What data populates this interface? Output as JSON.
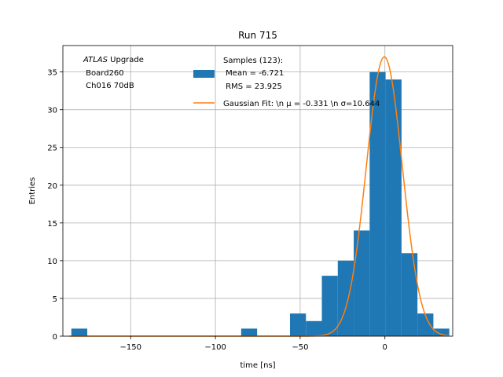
{
  "chart_data": {
    "type": "bar",
    "title": "Run 715",
    "xlabel": "time [ns]",
    "ylabel": "Entries",
    "xlim": [
      -190,
      40
    ],
    "ylim": [
      0,
      38.5
    ],
    "xticks": [
      -150,
      -100,
      -50,
      0
    ],
    "xtick_labels": [
      "−150",
      "−100",
      "−50",
      "0"
    ],
    "yticks": [
      0,
      5,
      10,
      15,
      20,
      25,
      30,
      35
    ],
    "ytick_labels": [
      "0",
      "5",
      "10",
      "15",
      "20",
      "25",
      "30",
      "35"
    ],
    "grid": true,
    "annotation": {
      "italic": "ATLAS",
      "rest": " Upgrade",
      "line2": " Board260",
      "line3": " Ch016 70dB"
    },
    "histogram": {
      "name_lines": [
        "Samples (123):",
        " Mean = -6.721",
        " RMS = 23.925"
      ],
      "color": "#1f77b4",
      "bins": [
        {
          "x0": -185.0,
          "x1": -175.6,
          "count": 1
        },
        {
          "x0": -84.8,
          "x1": -75.4,
          "count": 1
        },
        {
          "x0": -56.0,
          "x1": -46.6,
          "count": 3
        },
        {
          "x0": -46.6,
          "x1": -37.2,
          "count": 2
        },
        {
          "x0": -37.2,
          "x1": -27.8,
          "count": 8
        },
        {
          "x0": -27.8,
          "x1": -18.4,
          "count": 10
        },
        {
          "x0": -18.4,
          "x1": -9.0,
          "count": 14
        },
        {
          "x0": -9.0,
          "x1": 0.4,
          "count": 35
        },
        {
          "x0": 0.4,
          "x1": 9.8,
          "count": 34
        },
        {
          "x0": 9.8,
          "x1": 19.2,
          "count": 11
        },
        {
          "x0": 19.2,
          "x1": 28.6,
          "count": 3
        },
        {
          "x0": 28.6,
          "x1": 38.0,
          "count": 1
        }
      ]
    },
    "fit": {
      "name": "Gaussian Fit: \\n μ = -0.331 \\n σ=10.644",
      "color": "#ff7f0e",
      "amplitude": 37.0,
      "mu": -0.331,
      "sigma": 10.644
    },
    "legend_location": "upper-center"
  }
}
